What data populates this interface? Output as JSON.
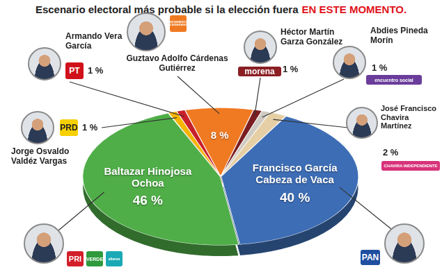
{
  "chart_data": {
    "type": "pie",
    "title": [
      "Escenario electoral más probable si la elección fuera",
      "EN ESTE MOMENTO."
    ],
    "categories": [
      "Guztavo Adolfo Cárdenas Gutiérrez",
      "Héctor Martín Garza González",
      "Abdies Pineda Morín",
      "José Francisco Chavira Martínez",
      "Francisco García Cabeza de Vaca",
      "Baltazar Hinojosa Ochoa",
      "Jorge Osvaldo Valdéz Vargas",
      "Armando Vera García"
    ],
    "values": [
      8,
      1,
      1,
      2,
      40,
      46,
      1,
      1
    ],
    "value_labels": [
      "8 %",
      "1 %",
      "1 %",
      "2 %",
      "40 %",
      "46 %",
      "1 %",
      "1 %"
    ],
    "colors": [
      "#f07a22",
      "#7a1e22",
      "#cfcac2",
      "#e6cfa5",
      "#3d6db5",
      "#4fae48",
      "#f5b400",
      "#c8202a"
    ],
    "data_labels": true,
    "parties": [
      [
        {
          "name": "MOVIMIENTO CIUDADANO",
          "color": "#f07a22"
        }
      ],
      [
        {
          "name": "morena",
          "color": "#8b1f24"
        }
      ],
      [
        {
          "name": "encuentro social",
          "color": "#6a3d9a"
        }
      ],
      [
        {
          "name": "CHAVIRA INDEPENDIENTE",
          "color": "#d8337a"
        }
      ],
      [
        {
          "name": "PAN",
          "color": "#1f4fa0"
        }
      ],
      [
        {
          "name": "PRI",
          "color": "#d21f2b"
        },
        {
          "name": "VERDE",
          "color": "#2e9a3c"
        },
        {
          "name": "alianza",
          "color": "#1ba9b5"
        }
      ],
      [
        {
          "name": "PRD",
          "color": "#f7d000"
        }
      ],
      [
        {
          "name": "PT",
          "color": "#d0101a"
        }
      ]
    ]
  }
}
